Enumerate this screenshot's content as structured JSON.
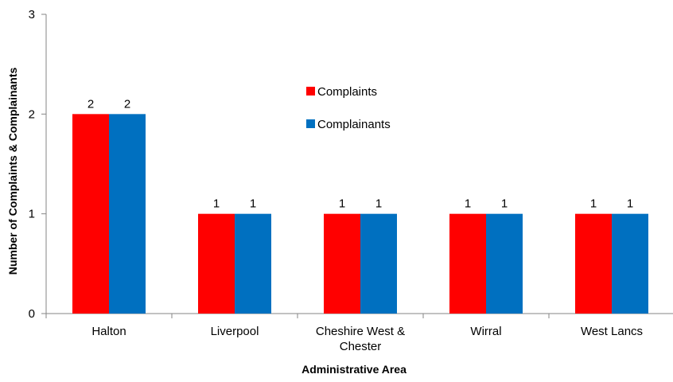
{
  "chart_data": {
    "type": "bar",
    "title": "",
    "xlabel": "Administrative Area",
    "ylabel": "Number of Complaints & Complainants",
    "categories": [
      "Halton",
      "Liverpool",
      "Cheshire West & Chester",
      "Wirral",
      "West Lancs"
    ],
    "category_lines": [
      [
        "Halton"
      ],
      [
        "Liverpool"
      ],
      [
        "Cheshire West &",
        "Chester"
      ],
      [
        "Wirral"
      ],
      [
        "West Lancs"
      ]
    ],
    "series": [
      {
        "name": "Complaints",
        "values": [
          2,
          1,
          1,
          1,
          1
        ],
        "color": "#ff0000"
      },
      {
        "name": "Complainants",
        "values": [
          2,
          1,
          1,
          1,
          1
        ],
        "color": "#0070c0"
      }
    ],
    "ylim": [
      0,
      3
    ],
    "yticks": [
      0,
      1,
      2,
      3
    ],
    "grid": false,
    "legend": "inside-top-center"
  }
}
